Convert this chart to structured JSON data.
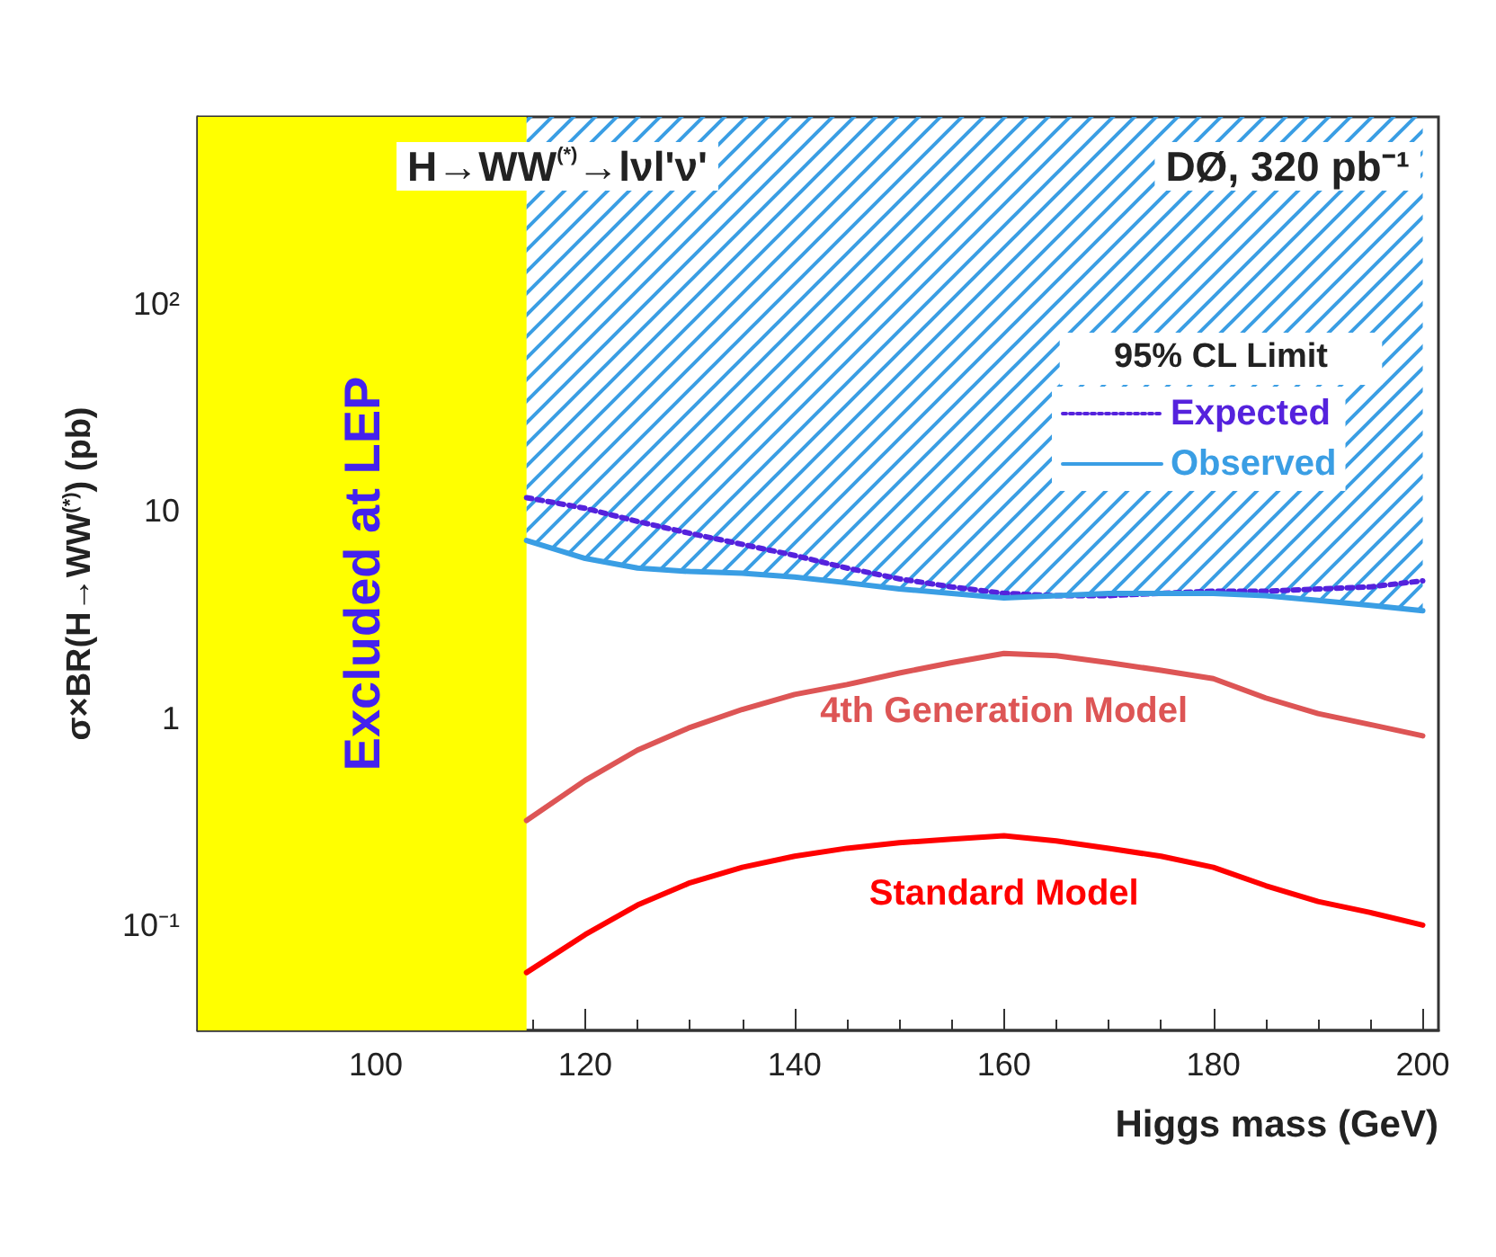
{
  "chart_data": {
    "type": "line",
    "annotations": [
      "H→WW$^{(*)}$→lνl'ν'",
      "DØ, 320 pb⁻¹"
    ],
    "xlabel": "Higgs mass (GeV)",
    "ylabel": "σ×BR(H→WW$^{(*)}$) (pb)",
    "legend_title": "95% CL Limit",
    "x": [
      114.4,
      120,
      125,
      130,
      135,
      140,
      145,
      150,
      155,
      160,
      165,
      170,
      175,
      180,
      185,
      190,
      195,
      200
    ],
    "series": [
      {
        "name": "Expected",
        "color": "#5522dd",
        "line_style": "dotted",
        "values": [
          11.6,
          10.3,
          8.9,
          7.8,
          6.9,
          6.1,
          5.3,
          4.7,
          4.3,
          4.0,
          3.9,
          3.9,
          4.0,
          4.1,
          4.1,
          4.2,
          4.3,
          4.6
        ]
      },
      {
        "name": "Observed",
        "color": "#3a9ee4",
        "values": [
          7.2,
          5.9,
          5.3,
          5.1,
          5.0,
          4.8,
          4.5,
          4.2,
          4.0,
          3.8,
          3.9,
          4.0,
          4.0,
          4.0,
          3.9,
          3.7,
          3.5,
          3.3
        ],
        "lower": [
          7.2,
          5.9,
          5.3,
          5.1,
          5.0,
          4.8,
          4.5,
          4.2,
          4.0,
          3.8,
          3.9,
          4.0,
          4.0,
          4.0,
          3.9,
          3.7,
          3.5,
          3.3
        ],
        "upper": [
          800,
          800,
          800,
          800,
          800,
          800,
          800,
          800,
          800,
          800,
          800,
          800,
          800,
          800,
          800,
          800,
          800,
          800
        ]
      },
      {
        "name": "4th Generation Model",
        "color": "#dd5555",
        "values": [
          0.32,
          0.5,
          0.7,
          0.9,
          1.1,
          1.3,
          1.45,
          1.65,
          1.85,
          2.05,
          2.0,
          1.85,
          1.7,
          1.55,
          1.25,
          1.05,
          0.93,
          0.82
        ]
      },
      {
        "name": "Standard Model",
        "color": "#ff0000",
        "values": [
          0.059,
          0.09,
          0.125,
          0.16,
          0.19,
          0.215,
          0.235,
          0.25,
          0.26,
          0.27,
          0.255,
          0.235,
          0.215,
          0.19,
          0.155,
          0.13,
          0.115,
          0.1
        ]
      }
    ],
    "bands": [
      {
        "axis": "x",
        "from": 83,
        "to": 114.4,
        "label": "Excluded at LEP",
        "color": "#ffff00"
      }
    ],
    "xlim": [
      83,
      201.5
    ],
    "xticks": [
      100,
      120,
      140,
      160,
      180,
      200
    ],
    "ylim": [
      0.031,
      800
    ],
    "yticks": [
      {
        "value": 0.1,
        "label": "10⁻¹"
      },
      1,
      10,
      {
        "value": 100,
        "label": "10²"
      }
    ],
    "log": "y",
    "grid": false,
    "legend": "top right",
    "marker": "none"
  }
}
